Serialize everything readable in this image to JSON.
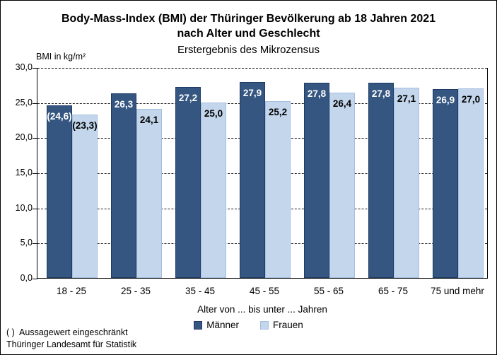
{
  "header": {
    "title_line1": "Body-Mass-Index (BMI) der Thüringer Bevölkerung ab 18 Jahren 2021",
    "title_line2": "nach Alter und Geschlecht",
    "subtitle": "Erstergebnis des Mikrozensus"
  },
  "chart_data": {
    "type": "bar",
    "title": "Body-Mass-Index (BMI) der Thüringer Bevölkerung ab 18 Jahren 2021 nach Alter und Geschlecht",
    "subtitle": "Erstergebnis des Mikrozensus",
    "y_axis_label": "BMI in kg/m²",
    "x_axis_title": "Alter von ... bis unter ... Jahren",
    "categories": [
      "18 - 25",
      "25 - 35",
      "35 - 45",
      "45 - 55",
      "55 - 65",
      "65 - 75",
      "75 und mehr"
    ],
    "series": [
      {
        "name": "Männer",
        "color": "#345680",
        "border_color": "#1F3A64",
        "label_color": "#ffffff",
        "values": [
          24.6,
          26.3,
          27.2,
          27.9,
          27.8,
          27.8,
          26.9
        ],
        "labels": [
          "(24,6)",
          "26,3",
          "27,2",
          "27,9",
          "27,8",
          "27,8",
          "26,9"
        ]
      },
      {
        "name": "Frauen",
        "color": "#C3D6EC",
        "border_color": "#A4BEE0",
        "label_color": "#000000",
        "values": [
          23.3,
          24.1,
          25.0,
          25.2,
          26.4,
          27.1,
          27.0
        ],
        "labels": [
          "(23,3)",
          "24,1",
          "25,0",
          "25,2",
          "26,4",
          "27,1",
          "27,0"
        ]
      }
    ],
    "ylim": [
      0,
      30
    ],
    "ytick_step": 5,
    "ytick_labels": [
      "0,0",
      "5,0",
      "10,0",
      "15,0",
      "20,0",
      "25,0",
      "30,0"
    ],
    "grid": "horizontal dashed",
    "legend_position": "bottom"
  },
  "footer": {
    "note": "( )  Aussagewert eingeschränkt",
    "source": "Thüringer Landesamt für Statistik"
  }
}
